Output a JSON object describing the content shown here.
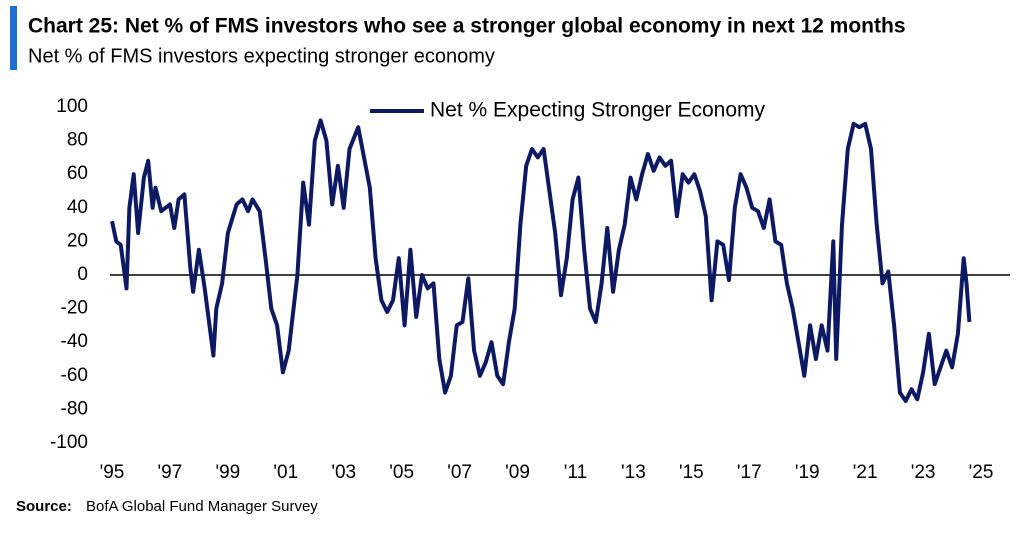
{
  "chart_data": {
    "type": "line",
    "title": "Chart 25: Net % of FMS investors who see a stronger global economy in next 12 months",
    "subtitle": "Net % of FMS investors expecting stronger economy",
    "source_label": "Source:",
    "source": "BofA Global Fund Manager Survey",
    "x": [
      1995.0,
      1995.15,
      1995.3,
      1995.5,
      1995.6,
      1995.75,
      1995.9,
      1996.1,
      1996.25,
      1996.4,
      1996.5,
      1996.7,
      1997.0,
      1997.15,
      1997.3,
      1997.5,
      1997.7,
      1997.8,
      1998.0,
      1998.2,
      1998.5,
      1998.6,
      1998.8,
      1999.0,
      1999.3,
      1999.5,
      1999.7,
      1999.85,
      2000.1,
      2000.3,
      2000.5,
      2000.7,
      2000.9,
      2001.1,
      2001.4,
      2001.6,
      2001.8,
      2002.0,
      2002.2,
      2002.4,
      2002.6,
      2002.8,
      2003.0,
      2003.2,
      2003.5,
      2003.7,
      2003.9,
      2004.1,
      2004.3,
      2004.5,
      2004.7,
      2004.9,
      2005.1,
      2005.3,
      2005.5,
      2005.7,
      2005.9,
      2006.1,
      2006.3,
      2006.5,
      2006.7,
      2006.9,
      2007.1,
      2007.3,
      2007.5,
      2007.7,
      2007.9,
      2008.1,
      2008.3,
      2008.5,
      2008.7,
      2008.9,
      2009.1,
      2009.3,
      2009.5,
      2009.7,
      2009.9,
      2010.1,
      2010.3,
      2010.5,
      2010.7,
      2010.9,
      2011.1,
      2011.3,
      2011.5,
      2011.7,
      2011.9,
      2012.1,
      2012.3,
      2012.5,
      2012.7,
      2012.9,
      2013.1,
      2013.3,
      2013.5,
      2013.7,
      2013.9,
      2014.1,
      2014.3,
      2014.5,
      2014.7,
      2014.9,
      2015.1,
      2015.3,
      2015.5,
      2015.7,
      2015.9,
      2016.1,
      2016.3,
      2016.5,
      2016.7,
      2016.9,
      2017.1,
      2017.3,
      2017.5,
      2017.7,
      2017.9,
      2018.1,
      2018.3,
      2018.5,
      2018.7,
      2018.9,
      2019.1,
      2019.3,
      2019.5,
      2019.7,
      2019.9,
      2020.0,
      2020.2,
      2020.4,
      2020.6,
      2020.8,
      2021.0,
      2021.2,
      2021.4,
      2021.6,
      2021.8,
      2022.0,
      2022.2,
      2022.4,
      2022.6,
      2022.8,
      2023.0,
      2023.2,
      2023.4,
      2023.6,
      2023.8,
      2024.0,
      2024.2,
      2024.4,
      2024.5,
      2024.6
    ],
    "series": [
      {
        "name": "Net % Expecting Stronger Economy",
        "color": "#0d1a63",
        "values": [
          32,
          20,
          18,
          -8,
          40,
          60,
          25,
          58,
          68,
          40,
          52,
          38,
          42,
          28,
          45,
          48,
          5,
          -10,
          15,
          -8,
          -48,
          -20,
          -5,
          25,
          42,
          45,
          38,
          45,
          38,
          10,
          -20,
          -30,
          -58,
          -45,
          0,
          55,
          30,
          80,
          92,
          80,
          42,
          65,
          40,
          75,
          88,
          70,
          52,
          10,
          -15,
          -22,
          -15,
          10,
          -30,
          15,
          -25,
          0,
          -8,
          -5,
          -50,
          -70,
          -60,
          -30,
          -28,
          -2,
          -45,
          -60,
          -52,
          -40,
          -60,
          -65,
          -40,
          -20,
          30,
          65,
          75,
          70,
          75,
          50,
          25,
          -12,
          10,
          45,
          58,
          15,
          -20,
          -28,
          -5,
          28,
          -10,
          15,
          30,
          58,
          45,
          60,
          72,
          62,
          70,
          65,
          68,
          35,
          60,
          55,
          60,
          50,
          35,
          -15,
          20,
          18,
          -3,
          40,
          60,
          52,
          40,
          38,
          28,
          45,
          20,
          18,
          -5,
          -20,
          -40,
          -60,
          -30,
          -50,
          -30,
          -45,
          20,
          -50,
          30,
          75,
          90,
          88,
          90,
          75,
          30,
          -5,
          2,
          -30,
          -70,
          -75,
          -68,
          -74,
          -58,
          -35,
          -65,
          -55,
          -45,
          -55,
          -35,
          10,
          -5,
          -28
        ]
      }
    ],
    "xlim": [
      1995,
      2026
    ],
    "xticks": [
      {
        "value": 1995,
        "label": "'95"
      },
      {
        "value": 1997,
        "label": "'97"
      },
      {
        "value": 1999,
        "label": "'99"
      },
      {
        "value": 2001,
        "label": "'01"
      },
      {
        "value": 2003,
        "label": "'03"
      },
      {
        "value": 2005,
        "label": "'05"
      },
      {
        "value": 2007,
        "label": "'07"
      },
      {
        "value": 2009,
        "label": "'09"
      },
      {
        "value": 2011,
        "label": "'11"
      },
      {
        "value": 2013,
        "label": "'13"
      },
      {
        "value": 2015,
        "label": "'15"
      },
      {
        "value": 2017,
        "label": "'17"
      },
      {
        "value": 2019,
        "label": "'19"
      },
      {
        "value": 2021,
        "label": "'21"
      },
      {
        "value": 2023,
        "label": "'23"
      },
      {
        "value": 2025,
        "label": "'25"
      }
    ],
    "ylim": [
      -100,
      100
    ],
    "yticks": [
      -100,
      -80,
      -60,
      -40,
      -20,
      0,
      20,
      40,
      60,
      80,
      100
    ],
    "zero_line": true,
    "legend": "top"
  }
}
